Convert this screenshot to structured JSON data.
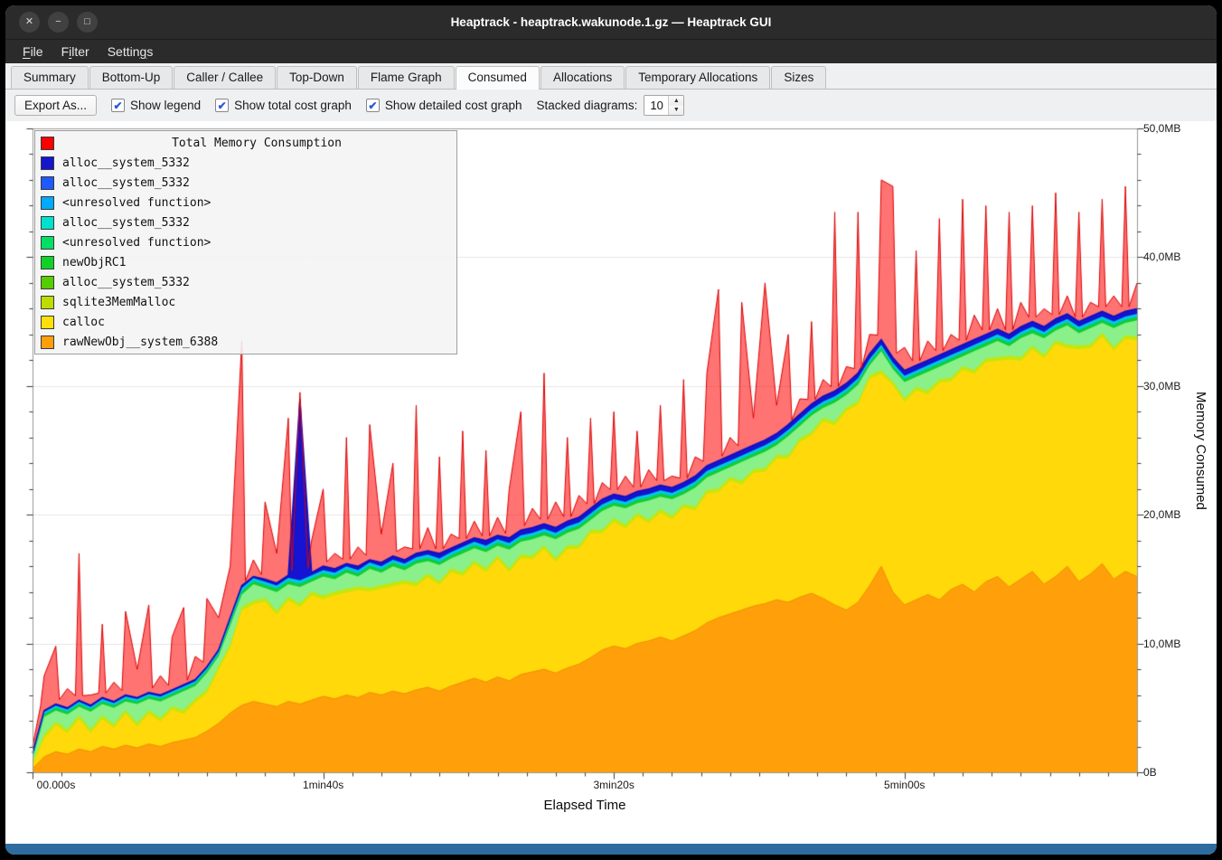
{
  "window": {
    "title": "Heaptrack - heaptrack.wakunode.1.gz — Heaptrack GUI",
    "controls": [
      {
        "name": "close",
        "glyph": "✕"
      },
      {
        "name": "minimize",
        "glyph": "−"
      },
      {
        "name": "maximize",
        "glyph": "□"
      }
    ]
  },
  "menu": {
    "items": [
      {
        "label": "File",
        "mnemonic_index": 0
      },
      {
        "label": "Filter",
        "mnemonic_index": 1
      },
      {
        "label": "Settings",
        "mnemonic_index": 6
      }
    ]
  },
  "tabs": {
    "active": "Consumed",
    "items": [
      "Summary",
      "Bottom-Up",
      "Caller / Callee",
      "Top-Down",
      "Flame Graph",
      "Consumed",
      "Allocations",
      "Temporary Allocations",
      "Sizes"
    ]
  },
  "toolbar": {
    "export_label": "Export As...",
    "check_glyph": "✔",
    "spin_up_glyph": "▲",
    "spin_down_glyph": "▼",
    "checkboxes": [
      {
        "label": "Show legend",
        "checked": true
      },
      {
        "label": "Show total cost graph",
        "checked": true
      },
      {
        "label": "Show detailed cost graph",
        "checked": true
      }
    ],
    "stacked_label": "Stacked diagrams:",
    "stacked_value": "10"
  },
  "legend": {
    "title": "Total Memory Consumption",
    "title_color": "#ff0000",
    "items": [
      {
        "label": "alloc__system_5332",
        "color": "#1515cd"
      },
      {
        "label": "alloc__system_5332",
        "color": "#1e5aff"
      },
      {
        "label": "<unresolved function>",
        "color": "#00aaff"
      },
      {
        "label": "alloc__system_5332",
        "color": "#00e1cd"
      },
      {
        "label": "<unresolved function>",
        "color": "#00e065"
      },
      {
        "label": "newObjRC1",
        "color": "#0fd228"
      },
      {
        "label": "alloc__system_5332",
        "color": "#55cd00"
      },
      {
        "label": "sqlite3MemMalloc",
        "color": "#bedc00"
      },
      {
        "label": "calloc",
        "color": "#ffe00a"
      },
      {
        "label": "rawNewObj__system_6388",
        "color": "#ff9e0a"
      }
    ]
  },
  "chart_data": {
    "type": "area",
    "title": "Total Memory Consumption",
    "xlabel": "Elapsed Time",
    "ylabel": "Memory Consumed",
    "x_ticks": [
      "00.000s",
      "1min40s",
      "3min20s",
      "5min00s"
    ],
    "x_tick_seconds": [
      0,
      100,
      200,
      300
    ],
    "x_minor_tick_seconds": 10,
    "y_ticks": [
      "0B",
      "10,0MB",
      "20,0MB",
      "30,0MB",
      "40,0MB",
      "50,0MB"
    ],
    "y_tick_values": [
      0,
      10,
      20,
      30,
      40,
      50
    ],
    "y_minor_tick_mb": 2,
    "unit": "MB",
    "x_start": 0,
    "x_step": 4,
    "x_max_seconds": 380,
    "y_max_mb": 50,
    "series": [
      {
        "name": "rawNewObj__system_6388",
        "color": "#ffa00a",
        "edge": "#ef8f00",
        "values": [
          0.3,
          1.2,
          1.6,
          1.4,
          1.8,
          1.6,
          2.0,
          1.8,
          2.1,
          1.9,
          2.2,
          2.0,
          2.3,
          2.5,
          2.7,
          3.2,
          3.8,
          4.6,
          5.2,
          5.5,
          5.3,
          5.1,
          5.5,
          5.3,
          5.6,
          5.9,
          5.7,
          6.0,
          5.8,
          6.2,
          6.0,
          6.3,
          6.1,
          6.4,
          6.6,
          6.3,
          6.7,
          7.0,
          7.3,
          7.0,
          7.4,
          7.1,
          7.6,
          7.8,
          8.0,
          7.7,
          8.1,
          8.4,
          8.9,
          9.5,
          9.8,
          9.6,
          10.0,
          10.2,
          10.5,
          10.2,
          10.6,
          11.0,
          11.6,
          12.0,
          12.3,
          12.6,
          12.9,
          13.1,
          13.4,
          13.2,
          13.6,
          13.9,
          13.5,
          13.0,
          12.6,
          13.2,
          14.5,
          16.0,
          14.0,
          13.0,
          13.4,
          13.8,
          13.4,
          14.2,
          14.6,
          14.0,
          14.8,
          15.2,
          14.4,
          15.0,
          15.6,
          14.6,
          15.2,
          16.0,
          14.8,
          15.4,
          16.2,
          15.0,
          15.6,
          15.2
        ]
      },
      {
        "name": "calloc",
        "color": "#ffd90a",
        "values": [
          0.8,
          3.6,
          4.1,
          3.8,
          4.4,
          4.0,
          4.6,
          4.2,
          4.8,
          4.5,
          5.0,
          4.7,
          5.1,
          5.5,
          5.9,
          6.9,
          8.2,
          10.6,
          13.0,
          13.8,
          13.5,
          13.2,
          13.8,
          13.6,
          14.0,
          14.4,
          14.2,
          14.7,
          14.4,
          15.0,
          14.7,
          15.2,
          14.9,
          15.4,
          15.6,
          15.3,
          15.8,
          16.2,
          16.6,
          16.3,
          16.8,
          16.5,
          17.1,
          17.3,
          17.6,
          17.3,
          17.8,
          18.1,
          18.8,
          19.5,
          19.9,
          19.7,
          20.1,
          20.3,
          20.6,
          20.4,
          20.8,
          21.3,
          22.1,
          22.5,
          22.9,
          23.3,
          23.7,
          24.1,
          24.6,
          25.3,
          26.1,
          26.9,
          27.5,
          27.9,
          28.5,
          29.3,
          30.8,
          31.9,
          30.5,
          29.5,
          29.9,
          30.3,
          30.7,
          31.1,
          31.5,
          31.9,
          32.3,
          32.7,
          32.3,
          32.9,
          33.3,
          32.9,
          33.5,
          33.9,
          33.3,
          33.7,
          34.1,
          33.7,
          34.1,
          34.3
        ]
      },
      {
        "name": "alloc__system_5332",
        "color": "#1414d2",
        "edge": "#0f0fb8",
        "values": [
          1.5,
          4.8,
          5.3,
          5.0,
          5.6,
          5.2,
          5.8,
          5.5,
          6.0,
          5.8,
          6.2,
          6.0,
          6.4,
          6.8,
          7.2,
          8.2,
          9.5,
          12.0,
          14.5,
          15.2,
          15.0,
          14.7,
          15.3,
          29.0,
          15.5,
          16.0,
          15.8,
          16.2,
          16.0,
          16.5,
          16.3,
          16.8,
          16.5,
          17.0,
          17.2,
          17.0,
          17.4,
          17.8,
          18.2,
          18.0,
          18.4,
          18.2,
          18.8,
          19.0,
          19.3,
          19.0,
          19.5,
          19.8,
          20.5,
          21.2,
          21.6,
          21.4,
          21.8,
          22.0,
          22.3,
          22.1,
          22.5,
          23.0,
          23.8,
          24.2,
          24.6,
          25.0,
          25.4,
          25.8,
          26.3,
          27.0,
          27.8,
          28.6,
          29.2,
          29.6,
          30.2,
          31.0,
          32.5,
          33.6,
          32.2,
          31.2,
          31.6,
          32.0,
          32.4,
          32.8,
          33.2,
          33.6,
          34.0,
          34.4,
          34.0,
          34.6,
          35.0,
          34.6,
          35.2,
          35.6,
          35.0,
          35.4,
          35.8,
          35.4,
          35.8,
          36.0
        ]
      },
      {
        "name": "Total Memory Consumption",
        "color": "rgba(255,0,0,0.55)",
        "edge": "#dd0000",
        "values": [
          2.0,
          7.5,
          9.8,
          6.5,
          17.0,
          6.0,
          11.5,
          7.0,
          12.5,
          8.0,
          13.0,
          7.5,
          10.5,
          12.8,
          9.0,
          13.5,
          12.0,
          16.0,
          33.5,
          16.5,
          21.0,
          17.0,
          27.5,
          29.5,
          18.0,
          22.0,
          17.0,
          26.0,
          17.5,
          27.0,
          18.5,
          24.0,
          17.5,
          28.5,
          19.0,
          24.5,
          18.5,
          26.5,
          19.5,
          25.0,
          19.8,
          22.0,
          28.0,
          20.5,
          31.0,
          21.0,
          26.0,
          21.5,
          27.5,
          22.5,
          28.0,
          23.0,
          26.5,
          23.5,
          28.5,
          23.0,
          30.5,
          24.5,
          31.0,
          37.5,
          26.0,
          36.5,
          27.5,
          38.0,
          28.5,
          34.0,
          29.0,
          35.0,
          30.5,
          43.5,
          31.5,
          43.5,
          34.0,
          46.0,
          45.5,
          33.0,
          40.5,
          33.5,
          43.0,
          34.0,
          44.5,
          35.5,
          44.0,
          36.0,
          43.5,
          36.5,
          44.0,
          36.0,
          45.0,
          37.0,
          43.5,
          36.5,
          44.5,
          37.0,
          45.5,
          38.0
        ]
      }
    ],
    "thin_bands": [
      {
        "name": "sqlite3MemMalloc",
        "color": "#c6e60a",
        "offset": 0.28
      },
      {
        "name": "<unresolved function>",
        "color": "#8af08a",
        "offset": 0.8
      },
      {
        "name": "newObjRC1",
        "color": "#12cc32",
        "offset": 1.05
      },
      {
        "name": "alloc__system_5332",
        "color": "#00c8e6",
        "offset": 1.3
      }
    ]
  }
}
